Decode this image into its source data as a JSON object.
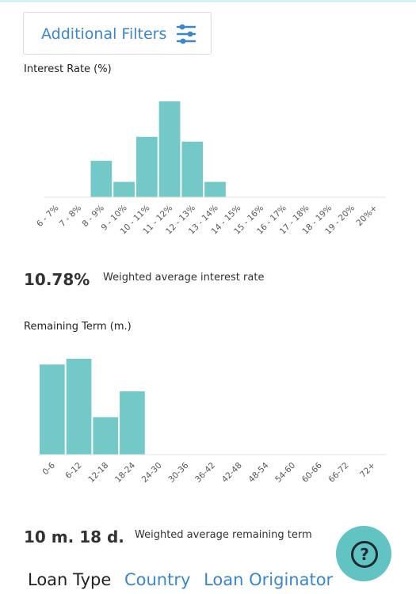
{
  "filters": {
    "label": "Additional Filters",
    "icon": "sliders-icon"
  },
  "interest": {
    "title": "Interest Rate (%)",
    "chart_data": {
      "type": "bar",
      "categories": [
        "6 - 7%",
        "7 - 8%",
        "8 - 9%",
        "9 - 10%",
        "10 - 11%",
        "11 - 12%",
        "12 - 13%",
        "13 - 14%",
        "14 - 15%",
        "15 - 16%",
        "16 - 17%",
        "17 - 18%",
        "18 - 19%",
        "19 - 20%",
        "20%+"
      ],
      "values": [
        0,
        0,
        38,
        16,
        63,
        100,
        58,
        16,
        0,
        0,
        0,
        0,
        0,
        0,
        0
      ],
      "ylim": [
        0,
        100
      ],
      "bar_color": "#72c9c8"
    },
    "stat_value": "10.78%",
    "stat_label": "Weighted average interest rate"
  },
  "term": {
    "title": "Remaining Term (m.)",
    "chart_data": {
      "type": "bar",
      "categories": [
        "0-6",
        "6-12",
        "12-18",
        "18-24",
        "24-30",
        "30-36",
        "36-42",
        "42-48",
        "48-54",
        "54-60",
        "60-66",
        "66-72",
        "72+"
      ],
      "values": [
        94,
        100,
        39,
        66,
        0,
        0,
        0,
        0,
        0,
        0,
        0,
        0,
        0
      ],
      "ylim": [
        0,
        100
      ],
      "bar_color": "#72c9c8"
    },
    "stat_value": "10 m. 18 d.",
    "stat_label": "Weighted average remaining term"
  },
  "tabs": {
    "active": "Loan Type",
    "country": "Country",
    "originator": "Loan Originator"
  },
  "help": {
    "label": "?",
    "color": "#62c3c3"
  }
}
